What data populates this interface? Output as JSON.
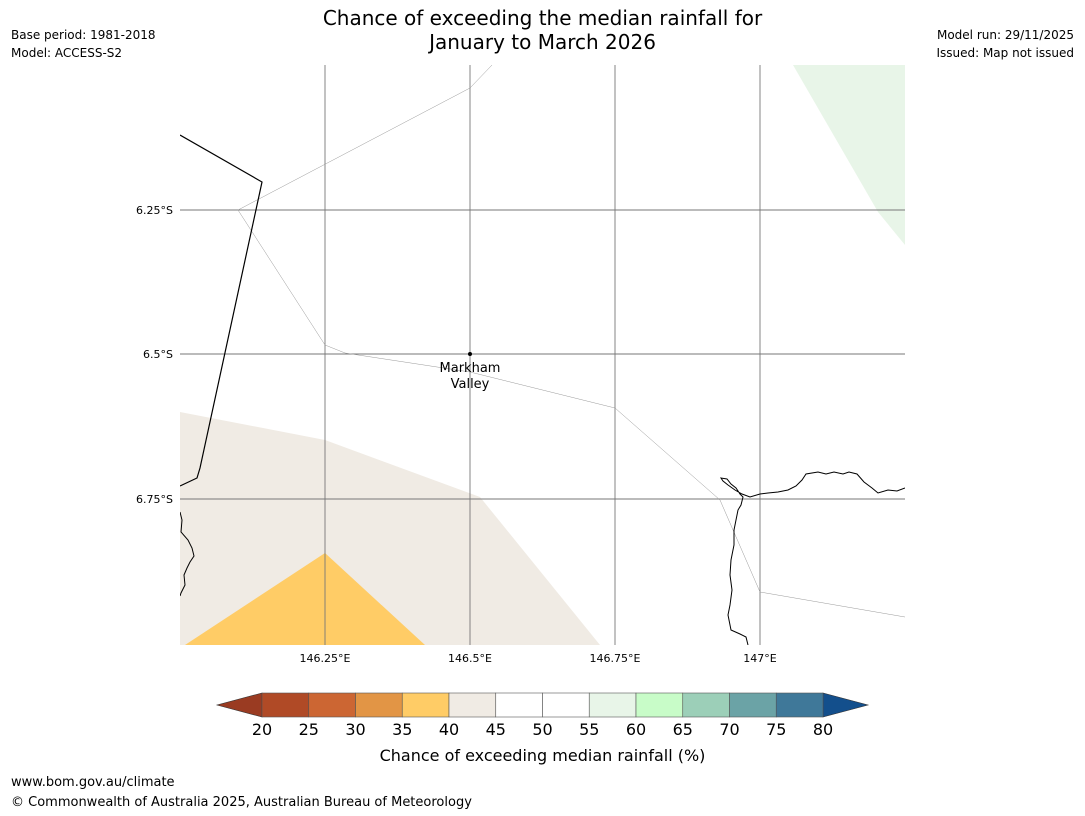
{
  "header": {
    "title_line1": "Chance of exceeding the median rainfall for",
    "title_line2": "January to March 2026",
    "base_period": "Base period: 1981-2018",
    "model": "Model: ACCESS-S2",
    "model_run": "Model run: 29/11/2025",
    "issued": "Issued: Map not issued"
  },
  "map": {
    "lat_labels": [
      "6.25°S",
      "6.5°S",
      "6.75°S"
    ],
    "lon_labels": [
      "146.25°E",
      "146.5°E",
      "146.75°E",
      "147°E"
    ],
    "place": {
      "line1": "Markham",
      "line2": "Valley"
    },
    "colors": {
      "bin_40_45": "#f0ebe4",
      "bin_35_40": "#ffcc66",
      "bin_55_60": "#e8f5e8"
    }
  },
  "colorbar": {
    "label": "Chance of exceeding median rainfall (%)",
    "ticks": [
      "20",
      "25",
      "30",
      "35",
      "40",
      "45",
      "50",
      "55",
      "60",
      "65",
      "70",
      "75",
      "80"
    ],
    "under_color": "#9a3b22",
    "over_color": "#134f8c",
    "colors": [
      "#b04a26",
      "#cc6633",
      "#e29545",
      "#ffcc66",
      "#f0ebe4",
      "#ffffff",
      "#ffffff",
      "#e8f5e8",
      "#c8fcc8",
      "#9ccfb8",
      "#6ba3a6",
      "#3f7899"
    ]
  },
  "footer": {
    "url": "www.bom.gov.au/climate",
    "copyright": "© Commonwealth of Australia 2025, Australian Bureau of Meteorology"
  }
}
